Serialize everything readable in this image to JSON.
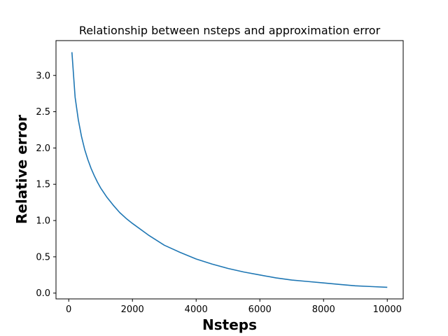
{
  "chart_data": {
    "type": "line",
    "title": "Relationship between nsteps and approximation error",
    "xlabel": "Nsteps",
    "ylabel": "Relative error",
    "xlim": [
      -400,
      10500
    ],
    "ylim": [
      -0.08,
      3.48
    ],
    "xticks": [
      0,
      2000,
      4000,
      6000,
      8000,
      10000
    ],
    "xtick_labels": [
      "0",
      "2000",
      "4000",
      "6000",
      "8000",
      "10000"
    ],
    "yticks": [
      0.0,
      0.5,
      1.0,
      1.5,
      2.0,
      2.5,
      3.0
    ],
    "ytick_labels": [
      "0.0",
      "0.5",
      "1.0",
      "1.5",
      "2.0",
      "2.5",
      "3.0"
    ],
    "grid": false,
    "legend": "none",
    "series": [
      {
        "color": "#1f77b4",
        "x": [
          100,
          200,
          300,
          400,
          500,
          600,
          700,
          800,
          900,
          1000,
          1200,
          1400,
          1600,
          1800,
          2000,
          2500,
          3000,
          3500,
          4000,
          4500,
          5000,
          5500,
          6000,
          6500,
          7000,
          7500,
          8000,
          8500,
          9000,
          9500,
          10000
        ],
        "y": [
          3.32,
          2.7,
          2.39,
          2.16,
          1.98,
          1.84,
          1.72,
          1.62,
          1.53,
          1.45,
          1.32,
          1.21,
          1.11,
          1.03,
          0.96,
          0.8,
          0.66,
          0.56,
          0.47,
          0.4,
          0.34,
          0.29,
          0.25,
          0.21,
          0.18,
          0.16,
          0.14,
          0.12,
          0.1,
          0.09,
          0.08
        ]
      }
    ]
  }
}
